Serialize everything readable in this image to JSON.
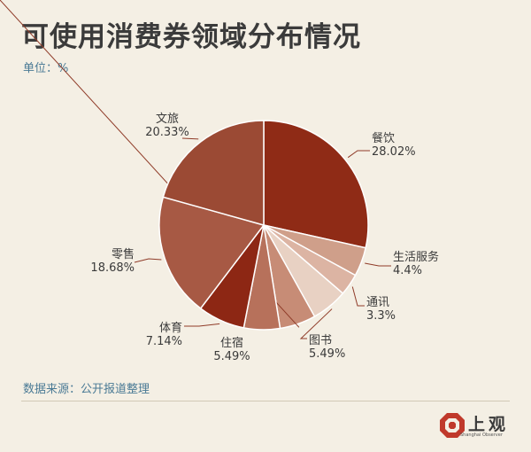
{
  "header": {
    "title": "可使用消费券领域分布情况",
    "unit": "单位：%"
  },
  "chart_data": {
    "type": "pie",
    "title": "可使用消费券领域分布情况",
    "unit": "%",
    "slices": [
      {
        "label": "餐饮",
        "value": 28.02,
        "display": "28.02%",
        "color": "#8f2b16"
      },
      {
        "label": "生活服务",
        "value": 4.4,
        "display": "4.4%",
        "color": "#cf9f8a"
      },
      {
        "label": "通讯",
        "value": 3.3,
        "display": "3.3%",
        "color": "#dcb4a3"
      },
      {
        "label": "图书",
        "value": 5.49,
        "display": "5.49%",
        "color": "#e8d1c3"
      },
      {
        "label": "住宿",
        "value": 5.49,
        "display": "5.49%",
        "color": "#c78c76"
      },
      {
        "label": "体育",
        "value": 5.49,
        "display": "5.49%",
        "color": "#b7715b"
      },
      {
        "label": "体育",
        "value": 7.14,
        "display": "7.14%",
        "color": "#8d2714"
      },
      {
        "label": "零售",
        "value": 18.68,
        "display": "18.68%",
        "color": "#a75944"
      },
      {
        "label": "文旅",
        "value": 20.33,
        "display": "20.33%",
        "color": "#9b4a34"
      }
    ]
  },
  "footer": {
    "source": "数据来源：公开报道整理",
    "brand_name": "上观",
    "brand_sub": "Shanghai Observer"
  }
}
